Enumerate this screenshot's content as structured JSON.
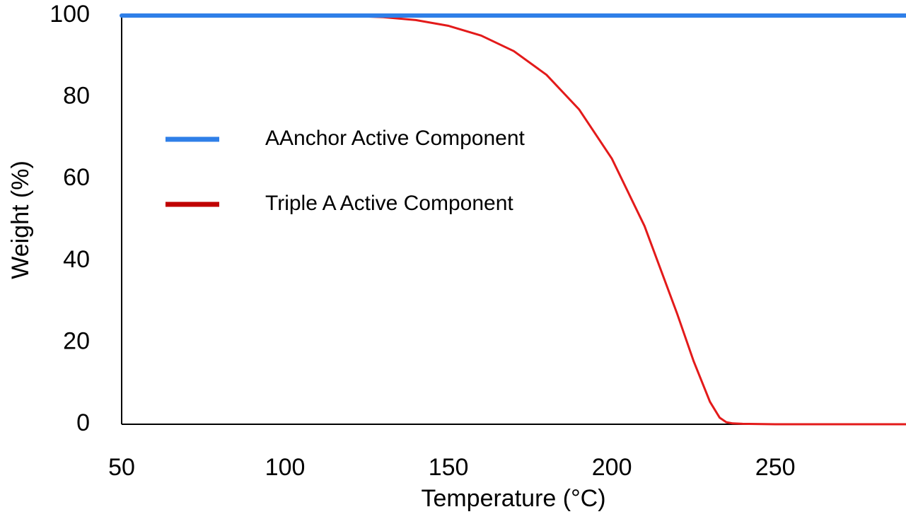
{
  "chart_data": {
    "type": "line",
    "xlabel": "Temperature (°C)",
    "ylabel": "Weight (%)",
    "xlim": [
      50,
      290
    ],
    "ylim": [
      0,
      100
    ],
    "xticks": [
      50,
      100,
      150,
      200,
      250
    ],
    "yticks": [
      0,
      20,
      40,
      60,
      80,
      100
    ],
    "grid": false,
    "legend_position": "center-left",
    "series": [
      {
        "name": "AAnchor Active Component",
        "color": "#2f7fe8",
        "x": [
          50,
          100,
          150,
          200,
          250,
          290
        ],
        "y": [
          100,
          100,
          100,
          100,
          100,
          100
        ]
      },
      {
        "name": "Triple A Active Component",
        "color": "#e31a1a",
        "legend_color": "#c00000",
        "x": [
          50,
          100,
          120,
          130,
          140,
          150,
          160,
          170,
          180,
          190,
          200,
          210,
          220,
          225,
          230,
          233,
          235,
          237,
          240,
          250,
          260,
          270,
          280,
          290
        ],
        "y": [
          100,
          100,
          99.9,
          99.6,
          98.9,
          97.5,
          95.1,
          91.3,
          85.5,
          77.0,
          65.0,
          48.5,
          27.0,
          15.5,
          5.5,
          1.6,
          0.5,
          0.2,
          0.1,
          0,
          0,
          0,
          0,
          0
        ]
      }
    ]
  }
}
